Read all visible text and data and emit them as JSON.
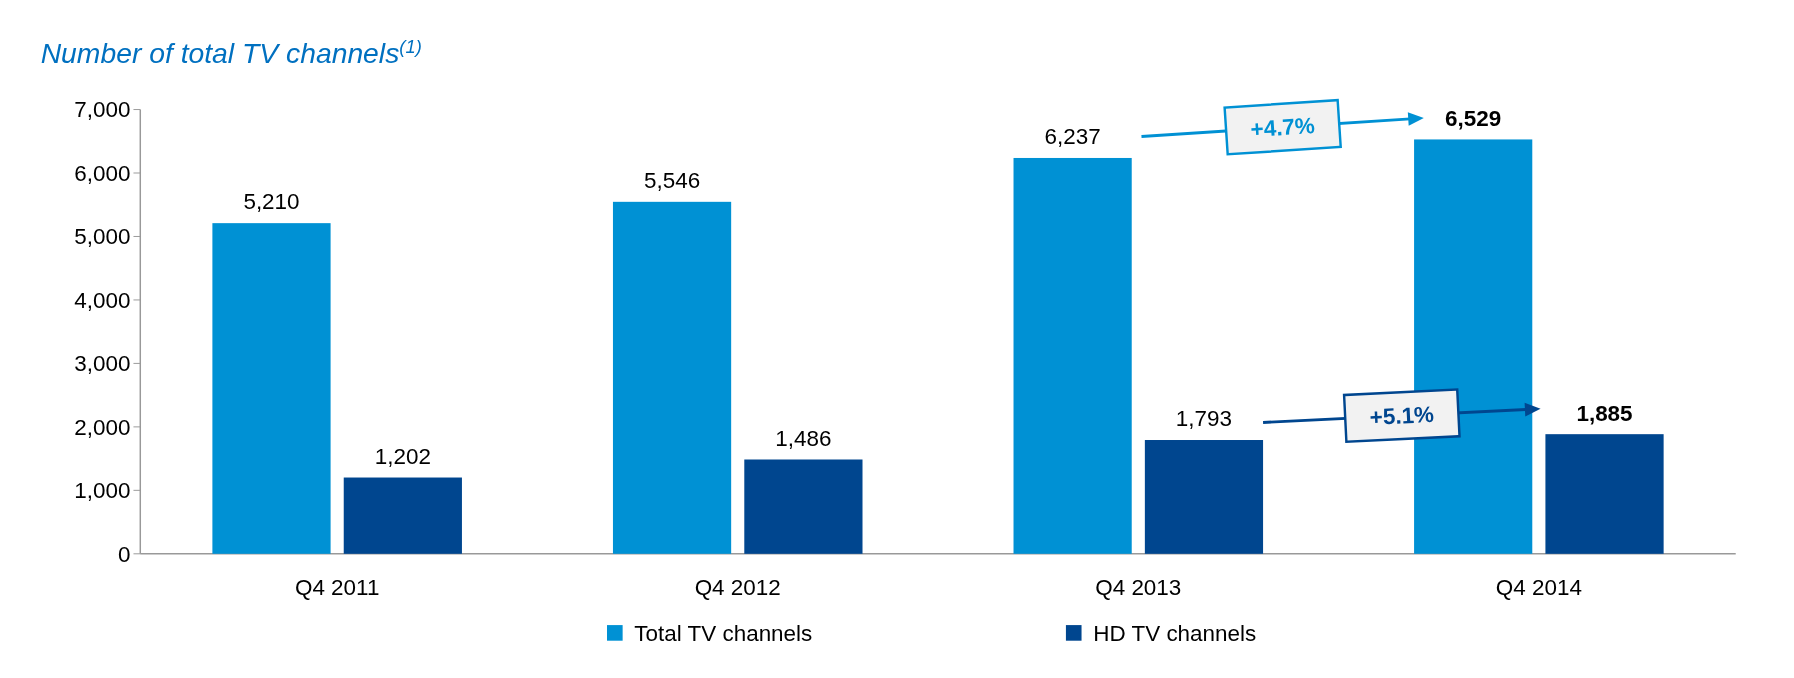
{
  "chart_data": {
    "type": "bar",
    "title": "Number of total TV channels$^{(1)}$",
    "categories": [
      "Q4 2011",
      "Q4 2012",
      "Q4 2013",
      "Q4 2014"
    ],
    "series": [
      {
        "name": "Total TV channels",
        "color": "#0091d4",
        "values": [
          5210,
          5546,
          6237,
          6529
        ],
        "value_labels": [
          "5,210",
          "5,546",
          "6,237",
          "6,529"
        ]
      },
      {
        "name": "HD TV channels",
        "color": "#00468f",
        "values": [
          1202,
          1486,
          1793,
          1885
        ],
        "value_labels": [
          "1,202",
          "1,486",
          "1,793",
          "1,885"
        ]
      }
    ],
    "ylim": [
      0,
      7000
    ],
    "yticks": [
      0,
      {
        "value": 1000,
        "label": "1,000"
      },
      {
        "value": 2000,
        "label": "2,000"
      },
      {
        "value": 3000,
        "label": "3,000"
      },
      {
        "value": 4000,
        "label": "4,000"
      },
      {
        "value": 5000,
        "label": "5,000"
      },
      {
        "value": 6000,
        "label": "6,000"
      },
      {
        "value": 7000,
        "label": "7,000"
      }
    ],
    "annotations": [
      "+4.7%",
      "+5.1%"
    ],
    "legend": "bottom",
    "grid": false
  }
}
